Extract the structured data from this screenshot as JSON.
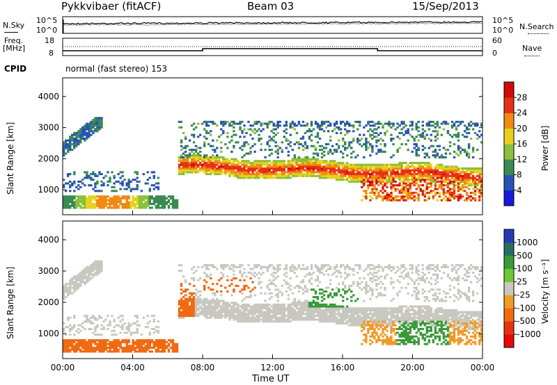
{
  "header": {
    "radar": "Pykkvibaer (fitACF)",
    "beam": "Beam 03",
    "date": "15/Sep/2013"
  },
  "noise_panel": {
    "left_label": "N.Sky",
    "right_label": "N.Search",
    "left_ticks": [
      "10^5",
      "10^0"
    ],
    "right_ticks": [
      "10^5",
      "10^0"
    ]
  },
  "freq_panel": {
    "left_label": "Freq.",
    "left_unit": "[MHz]",
    "right_label": "Nave",
    "left_ticks": [
      "18",
      "8"
    ],
    "right_ticks": [
      "60",
      "0"
    ]
  },
  "cpid": {
    "label": "CPID",
    "text": "normal (fast stereo) 153"
  },
  "chart_data": [
    {
      "type": "heatmap",
      "quantity": "power",
      "ylabel": "Slant Range [km]",
      "ylim": [
        200,
        4600
      ],
      "yticks": [
        "1000",
        "2000",
        "3000",
        "4000"
      ],
      "colorbar": {
        "label": "Power [dB]",
        "ticks": [
          "4",
          "8",
          "12",
          "16",
          "20",
          "24",
          "28"
        ],
        "colors": [
          "#1a1adc",
          "#2a52b8",
          "#3a8a52",
          "#8ac03a",
          "#e6d21e",
          "#f08a14",
          "#e63214",
          "#d20a0a"
        ]
      }
    },
    {
      "type": "heatmap",
      "quantity": "velocity",
      "ylabel": "Slant Range [km]",
      "xlabel": "Time UT",
      "ylim": [
        200,
        4600
      ],
      "yticks": [
        "1000",
        "2000",
        "3000",
        "4000"
      ],
      "xticks": [
        "00:00",
        "04:00",
        "08:00",
        "12:00",
        "16:00",
        "20:00",
        "00:00"
      ],
      "colorbar": {
        "label": "Velocity [m s⁻¹]",
        "ticks": [
          "1000",
          "500",
          "100",
          "25",
          "-25",
          "-100",
          "-500",
          "-1000"
        ],
        "colors": [
          "#2a3ab4",
          "#2a6e62",
          "#3a9a3a",
          "#6ec832",
          "#c8c8c0",
          "#f09a28",
          "#f06a14",
          "#e63214",
          "#e60a0a"
        ]
      }
    }
  ]
}
